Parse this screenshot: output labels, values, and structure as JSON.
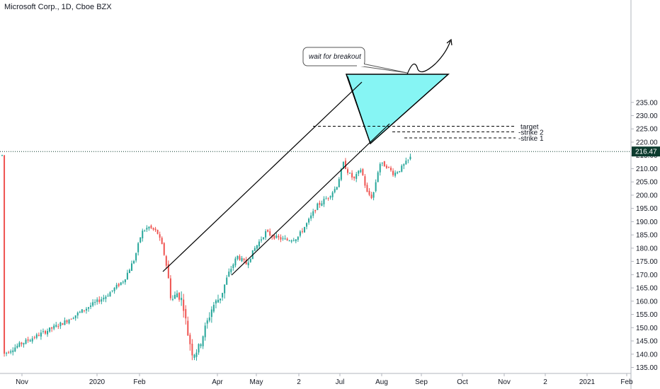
{
  "header": {
    "title": "Microsoft Corp., 1D, Cboe BZX"
  },
  "chart_data": {
    "type": "candlestick",
    "symbol": "Microsoft Corp., 1D, Cboe BZX",
    "ylim": [
      135,
      235
    ],
    "yticks": [
      135,
      140,
      145,
      150,
      155,
      160,
      165,
      170,
      175,
      180,
      185,
      190,
      195,
      200,
      205,
      210,
      215,
      220,
      225,
      230,
      235
    ],
    "ytick_labels": [
      "135.00",
      "140.00",
      "145.00",
      "150.00",
      "155.00",
      "160.00",
      "165.00",
      "170.00",
      "175.00",
      "180.00",
      "185.00",
      "190.00",
      "195.00",
      "200.00",
      "205.00",
      "210.00",
      "215.00",
      "220.00",
      "225.00",
      "230.00",
      "235.00"
    ],
    "xtick_labels": [
      "Nov",
      "2020",
      "Feb",
      "Apr",
      "May",
      "2",
      "Jul",
      "Aug",
      "Sep",
      "Oct",
      "Nov",
      "2",
      "2021",
      "Feb"
    ],
    "last_price": "216.47",
    "last_price_value": 216.47,
    "colors": {
      "up": "#26a69a",
      "down": "#ef5350",
      "triangle": "#5ef2f0",
      "price_tag": "#0c3b2e"
    },
    "grid": false,
    "annotations": {
      "bubble_text": "wait for breakout",
      "levels": [
        {
          "label": "target",
          "value": 226
        },
        {
          "label": "strike 2",
          "value": 223.9
        },
        {
          "label": "strike 1",
          "value": 221.6
        }
      ]
    }
  }
}
